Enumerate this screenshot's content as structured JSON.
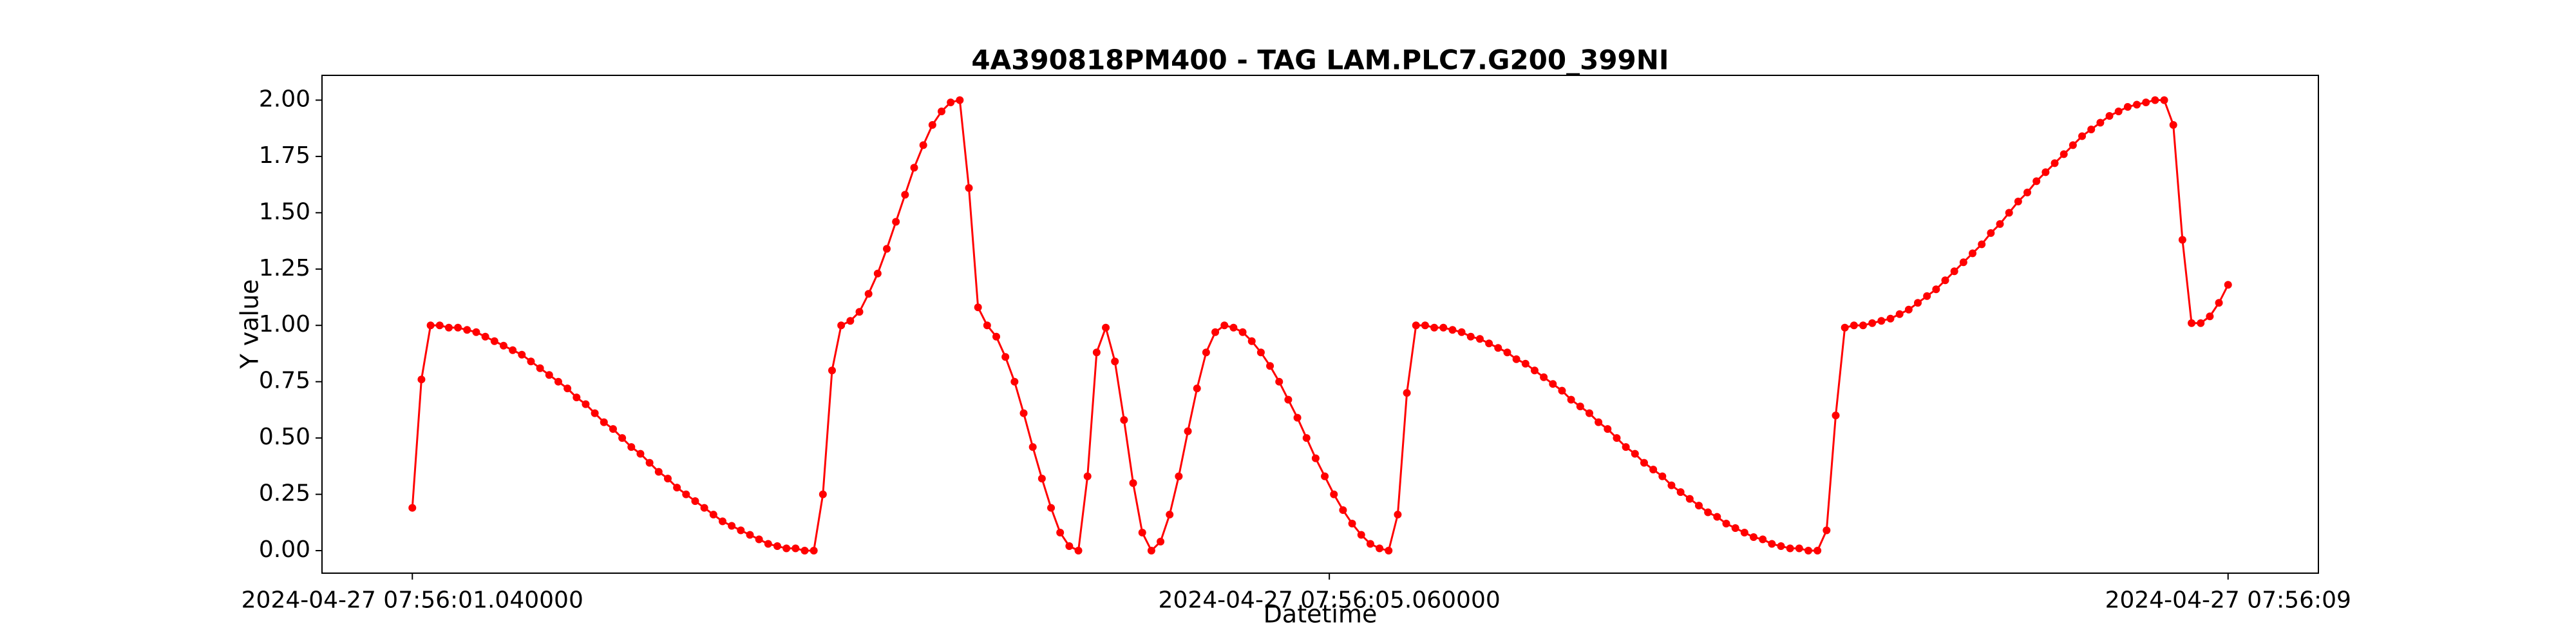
{
  "chart_data": {
    "type": "line",
    "title": "4A390818PM400 - TAG LAM.PLC7.G200_399NI",
    "xlabel": "Datetime",
    "ylabel": "Y value",
    "x": [
      1.04,
      1.08,
      1.12,
      1.16,
      1.2,
      1.24,
      1.28,
      1.32,
      1.36,
      1.4,
      1.44,
      1.48,
      1.52,
      1.56,
      1.6,
      1.64,
      1.68,
      1.72,
      1.76,
      1.8,
      1.84,
      1.88,
      1.92,
      1.96,
      2,
      2.04,
      2.08,
      2.12,
      2.16,
      2.2,
      2.24,
      2.28,
      2.32,
      2.36,
      2.4,
      2.44,
      2.48,
      2.52,
      2.56,
      2.6,
      2.64,
      2.68,
      2.72,
      2.76,
      2.8,
      2.84,
      2.88,
      2.92,
      2.96,
      3,
      3.04,
      3.08,
      3.12,
      3.16,
      3.2,
      3.24,
      3.28,
      3.32,
      3.36,
      3.4,
      3.44,
      3.48,
      3.52,
      3.56,
      3.6,
      3.64,
      3.68,
      3.72,
      3.76,
      3.8,
      3.84,
      3.88,
      3.92,
      3.96,
      4,
      4.04,
      4.08,
      4.12,
      4.16,
      4.2,
      4.24,
      4.28,
      4.32,
      4.36,
      4.4,
      4.44,
      4.48,
      4.52,
      4.56,
      4.6,
      4.64,
      4.68,
      4.72,
      4.76,
      4.8,
      4.84,
      4.88,
      4.92,
      4.96,
      5,
      5.04,
      5.08,
      5.12,
      5.16,
      5.2,
      5.24,
      5.28,
      5.32,
      5.36,
      5.4,
      5.44,
      5.48,
      5.52,
      5.56,
      5.6,
      5.64,
      5.68,
      5.72,
      5.76,
      5.8,
      5.84,
      5.88,
      5.92,
      5.96,
      6,
      6.04,
      6.08,
      6.12,
      6.16,
      6.2,
      6.24,
      6.28,
      6.32,
      6.36,
      6.4,
      6.44,
      6.48,
      6.52,
      6.56,
      6.6,
      6.64,
      6.68,
      6.72,
      6.76,
      6.8,
      6.84,
      6.88,
      6.92,
      6.96,
      7,
      7.04,
      7.08,
      7.12,
      7.16,
      7.2,
      7.24,
      7.28,
      7.32,
      7.36,
      7.4,
      7.44,
      7.48,
      7.52,
      7.56,
      7.6,
      7.64,
      7.68,
      7.72,
      7.76,
      7.8,
      7.84,
      7.88,
      7.92,
      7.96,
      8,
      8.04,
      8.08,
      8.12,
      8.16,
      8.2,
      8.24,
      8.28,
      8.32,
      8.36,
      8.4,
      8.44,
      8.48,
      8.52,
      8.56,
      8.6,
      8.64,
      8.68,
      8.72,
      8.76,
      8.8,
      8.84,
      8.88,
      8.92,
      8.96,
      9
    ],
    "series": [
      {
        "color": "#ff0000",
        "values": [
          0.19,
          0.76,
          1.0,
          1.0,
          0.99,
          0.99,
          0.98,
          0.97,
          0.95,
          0.93,
          0.91,
          0.89,
          0.87,
          0.84,
          0.81,
          0.78,
          0.75,
          0.72,
          0.68,
          0.65,
          0.61,
          0.57,
          0.54,
          0.5,
          0.46,
          0.43,
          0.39,
          0.35,
          0.32,
          0.28,
          0.25,
          0.22,
          0.19,
          0.16,
          0.13,
          0.11,
          0.09,
          0.07,
          0.05,
          0.03,
          0.02,
          0.01,
          0.01,
          0.0,
          0.0,
          0.25,
          0.8,
          1.0,
          1.02,
          1.06,
          1.14,
          1.23,
          1.34,
          1.46,
          1.58,
          1.7,
          1.8,
          1.89,
          1.95,
          1.99,
          2.0,
          1.61,
          1.08,
          1.0,
          0.95,
          0.86,
          0.75,
          0.61,
          0.46,
          0.32,
          0.19,
          0.08,
          0.02,
          0.0,
          0.33,
          0.88,
          0.99,
          0.84,
          0.58,
          0.3,
          0.08,
          0.0,
          0.04,
          0.16,
          0.33,
          0.53,
          0.72,
          0.88,
          0.97,
          1.0,
          0.99,
          0.97,
          0.93,
          0.88,
          0.82,
          0.75,
          0.67,
          0.59,
          0.5,
          0.41,
          0.33,
          0.25,
          0.18,
          0.12,
          0.07,
          0.03,
          0.01,
          0.0,
          0.16,
          0.7,
          1.0,
          1.0,
          0.99,
          0.99,
          0.98,
          0.97,
          0.95,
          0.94,
          0.92,
          0.9,
          0.88,
          0.85,
          0.83,
          0.8,
          0.77,
          0.74,
          0.71,
          0.67,
          0.64,
          0.61,
          0.57,
          0.54,
          0.5,
          0.46,
          0.43,
          0.39,
          0.36,
          0.33,
          0.29,
          0.26,
          0.23,
          0.2,
          0.17,
          0.15,
          0.12,
          0.1,
          0.08,
          0.06,
          0.05,
          0.03,
          0.02,
          0.01,
          0.01,
          0.0,
          0.0,
          0.09,
          0.6,
          0.99,
          1.0,
          1.0,
          1.01,
          1.02,
          1.03,
          1.05,
          1.07,
          1.1,
          1.13,
          1.16,
          1.2,
          1.24,
          1.28,
          1.32,
          1.36,
          1.41,
          1.45,
          1.5,
          1.55,
          1.59,
          1.64,
          1.68,
          1.72,
          1.76,
          1.8,
          1.84,
          1.87,
          1.9,
          1.93,
          1.95,
          1.97,
          1.98,
          1.99,
          2.0,
          2.0,
          1.89,
          1.38,
          1.01,
          1.01,
          1.04,
          1.1,
          1.18
        ]
      }
    ],
    "xlim": [
      0.644,
      9.396
    ],
    "xticks": [
      {
        "value": 1.04,
        "label": "2024-04-27 07:56:01.040000"
      },
      {
        "value": 5.06,
        "label": "2024-04-27 07:56:05.060000"
      },
      {
        "value": 9,
        "label": "2024-04-27 07:56:09"
      }
    ],
    "ylim": [
      -0.1,
      2.11
    ],
    "yticks": [
      {
        "value": 0,
        "label": "0.00"
      },
      {
        "value": 0.25,
        "label": "0.25"
      },
      {
        "value": 0.5,
        "label": "0.50"
      },
      {
        "value": 0.75,
        "label": "0.75"
      },
      {
        "value": 1,
        "label": "1.00"
      },
      {
        "value": 1.25,
        "label": "1.25"
      },
      {
        "value": 1.5,
        "label": "1.50"
      },
      {
        "value": 1.75,
        "label": "1.75"
      },
      {
        "value": 2,
        "label": "2.00"
      }
    ],
    "markers": true,
    "grid": false
  }
}
